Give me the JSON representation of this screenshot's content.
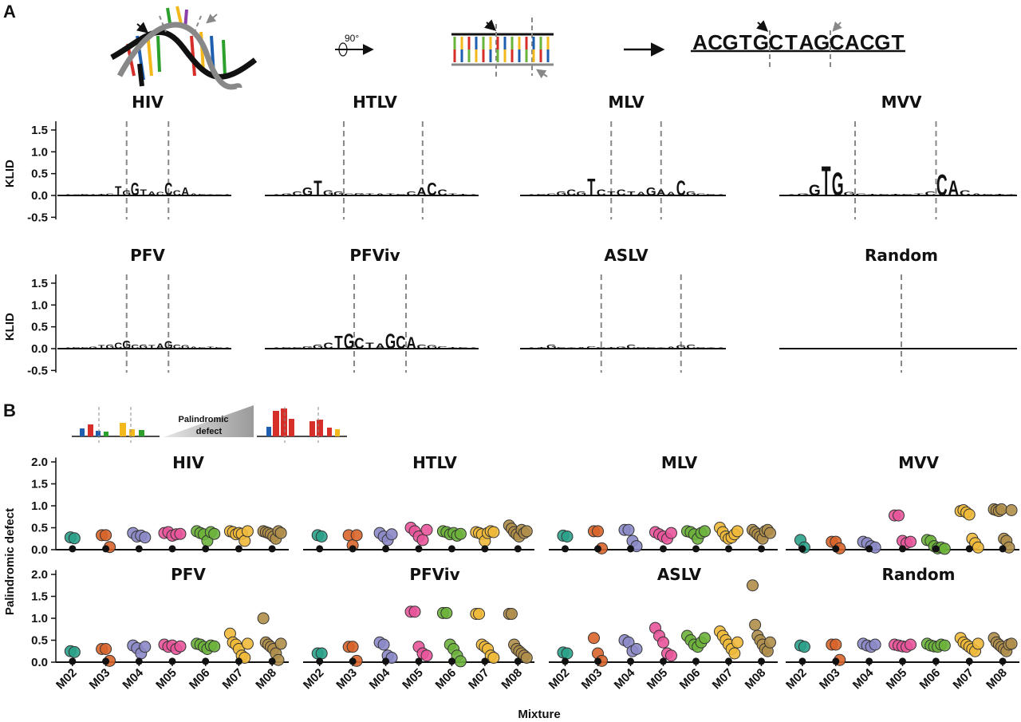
{
  "figure": {
    "panel_labels": [
      "A",
      "B"
    ],
    "diagram": {
      "rotation": "90°",
      "sequence": "ACGTGCTAGCACGT"
    },
    "defect_label": [
      "Palindromic",
      "defect"
    ]
  },
  "logo_axis": {
    "ylabel": "KLID",
    "ylim": [
      -0.55,
      1.7
    ],
    "yticks": [
      -0.5,
      {
        "value": 0,
        "label": "0.0"
      },
      0.5,
      {
        "value": 1,
        "label": "1.0"
      },
      1.5
    ]
  },
  "strip_axis": {
    "ylabel": "Palindromic defect",
    "xlabel": "Mixture",
    "categories": [
      "M02",
      "M03",
      "M04",
      "M05",
      "M06",
      "M07",
      "M08"
    ],
    "colors": [
      "#2aa18a",
      "#d9642a",
      "#8b88c6",
      "#e8559a",
      "#6bb33b",
      "#f0b93a",
      "#b08e4a"
    ],
    "ylim": [
      0,
      2.1
    ],
    "yticks": [
      {
        "value": 0,
        "label": "0.0"
      },
      0.5,
      {
        "value": 1,
        "label": "1.0"
      },
      1.5,
      {
        "value": 2,
        "label": "2.0"
      }
    ]
  },
  "chart_data": [
    {
      "type": "logo",
      "title": "HIV",
      "xlim": [
        0,
        20
      ],
      "cut_sites": [
        7.5,
        12.5
      ],
      "letters": [
        "A",
        "C",
        "G",
        "A",
        "T",
        "C",
        "T",
        "G",
        "G",
        "T",
        "A",
        "C",
        "C",
        "C",
        "A",
        "A",
        "C",
        "T",
        "G",
        "A"
      ],
      "heights": [
        0.02,
        0.02,
        0.03,
        0.02,
        0.03,
        0.05,
        0.22,
        0.12,
        0.3,
        0.15,
        0.1,
        0.08,
        0.3,
        0.12,
        0.2,
        0.05,
        0.03,
        0.02,
        0.02,
        0.02
      ]
    },
    {
      "type": "logo",
      "title": "HTLV",
      "xlim": [
        0,
        20
      ],
      "cut_sites": [
        7,
        14.6
      ],
      "letters": [
        "A",
        "G",
        "C",
        "G",
        "T",
        "G",
        "G",
        "C",
        "G",
        "T",
        "A",
        "T",
        "C",
        "C",
        "A",
        "C",
        "C",
        "T",
        "T",
        "A"
      ],
      "heights": [
        0.02,
        0.05,
        0.1,
        0.2,
        0.35,
        0.12,
        0.1,
        0.05,
        0.06,
        0.05,
        0.05,
        0.05,
        0.04,
        0.1,
        0.2,
        0.3,
        0.15,
        0.05,
        0.04,
        0.02
      ]
    },
    {
      "type": "logo",
      "title": "MLV",
      "xlim": [
        0,
        20
      ],
      "cut_sites": [
        8.5,
        13.5
      ],
      "letters": [
        "A",
        "G",
        "C",
        "G",
        "C",
        "G",
        "T",
        "C",
        "T",
        "C",
        "T",
        "A",
        "G",
        "A",
        "A",
        "C",
        "G",
        "C",
        "G",
        "A"
      ],
      "heights": [
        0.02,
        0.04,
        0.05,
        0.1,
        0.15,
        0.1,
        0.4,
        0.15,
        0.1,
        0.15,
        0.1,
        0.08,
        0.2,
        0.15,
        0.08,
        0.35,
        0.1,
        0.05,
        0.04,
        0.02
      ]
    },
    {
      "type": "logo",
      "title": "MVV",
      "xlim": [
        0,
        20
      ],
      "cut_sites": [
        6,
        13
      ],
      "letters": [
        "A",
        "G",
        "G",
        "T",
        "G",
        "G",
        "C",
        "T",
        "C",
        "T",
        "C",
        "T",
        "C",
        "C",
        "A",
        "C",
        "A",
        "G",
        "T",
        "T"
      ],
      "heights": [
        0.02,
        0.05,
        0.25,
        0.7,
        0.55,
        0.08,
        0.05,
        0.04,
        0.03,
        0.03,
        0.03,
        0.05,
        0.1,
        0.5,
        0.35,
        0.12,
        0.05,
        0.04,
        0.03,
        0.02
      ]
    },
    {
      "type": "logo",
      "title": "PFV",
      "xlim": [
        0,
        20
      ],
      "cut_sites": [
        7.5,
        12.5
      ],
      "letters": [
        "A",
        "G",
        "C",
        "G",
        "T",
        "G",
        "C",
        "G",
        "C",
        "G",
        "T",
        "A",
        "G",
        "C",
        "G",
        "A",
        "C",
        "T",
        "C",
        "A"
      ],
      "heights": [
        0.02,
        0.03,
        0.04,
        0.05,
        0.08,
        0.1,
        0.15,
        0.2,
        0.1,
        0.1,
        0.08,
        0.12,
        0.18,
        0.1,
        0.08,
        0.05,
        0.04,
        0.05,
        0.03,
        0.02
      ]
    },
    {
      "type": "logo",
      "title": "PFViv",
      "xlim": [
        0,
        20
      ],
      "cut_sites": [
        8,
        13
      ],
      "letters": [
        "A",
        "G",
        "C",
        "G",
        "G",
        "C",
        "T",
        "G",
        "C",
        "T",
        "A",
        "G",
        "C",
        "A",
        "C",
        "G",
        "C",
        "T",
        "C",
        "A"
      ],
      "heights": [
        0.02,
        0.03,
        0.04,
        0.06,
        0.1,
        0.15,
        0.3,
        0.35,
        0.25,
        0.15,
        0.12,
        0.35,
        0.3,
        0.28,
        0.1,
        0.08,
        0.06,
        0.04,
        0.03,
        0.02
      ]
    },
    {
      "type": "logo",
      "title": "ASLV",
      "xlim": [
        0,
        20
      ],
      "cut_sites": [
        7.5,
        15.5
      ],
      "letters": [
        "A",
        "T",
        "G",
        "C",
        "T",
        "A",
        "C",
        "G",
        "T",
        "G",
        "C",
        "G",
        "C",
        "T",
        "A",
        "G",
        "C",
        "G",
        "T",
        "A"
      ],
      "heights": [
        0.02,
        0.03,
        0.1,
        0.03,
        0.02,
        0.04,
        0.06,
        0.03,
        0.04,
        0.05,
        0.1,
        0.04,
        0.03,
        0.02,
        0.05,
        0.08,
        0.1,
        0.04,
        0.02,
        0.02
      ]
    },
    {
      "type": "logo",
      "title": "Random",
      "xlim": [
        0,
        20
      ],
      "cut_sites": [
        10
      ],
      "letters": [],
      "heights": []
    },
    {
      "type": "strip",
      "title": "HIV",
      "reference": [
        0.02,
        0.02,
        0.02,
        0.02,
        0.02,
        0.02,
        0.02
      ],
      "values": [
        [
          0.28,
          0.26
        ],
        [
          0.33,
          0.33,
          0.06
        ],
        [
          0.38,
          0.3,
          0.32,
          0.28
        ],
        [
          0.38,
          0.4,
          0.32,
          0.35,
          0.36
        ],
        [
          0.42,
          0.38,
          0.35,
          0.2,
          0.4,
          0.36
        ],
        [
          0.42,
          0.4,
          0.35,
          0.38,
          0.36,
          0.2,
          0.42
        ],
        [
          0.42,
          0.4,
          0.38,
          0.35,
          0.3,
          0.25,
          0.42,
          0.38
        ]
      ]
    },
    {
      "type": "strip",
      "title": "HTLV",
      "reference": [
        0.02,
        0.02,
        0.02,
        0.02,
        0.02,
        0.02,
        0.02
      ],
      "values": [
        [
          0.33,
          0.3
        ],
        [
          0.33,
          0.1,
          0.33
        ],
        [
          0.38,
          0.3,
          0.22,
          0.35
        ],
        [
          0.5,
          0.42,
          0.3,
          0.22,
          0.45
        ],
        [
          0.42,
          0.4,
          0.35,
          0.38,
          0.32,
          0.36
        ],
        [
          0.4,
          0.38,
          0.35,
          0.2,
          0.38,
          0.42,
          0.4
        ],
        [
          0.55,
          0.48,
          0.4,
          0.35,
          0.3,
          0.45,
          0.38,
          0.42
        ]
      ]
    },
    {
      "type": "strip",
      "title": "MLV",
      "reference": [
        0.02,
        0.02,
        0.02,
        0.02,
        0.02,
        0.02,
        0.02
      ],
      "values": [
        [
          0.32,
          0.3
        ],
        [
          0.42,
          0.42,
          0.03
        ],
        [
          0.45,
          0.45,
          0.2,
          0.08
        ],
        [
          0.4,
          0.35,
          0.3,
          0.25,
          0.38
        ],
        [
          0.42,
          0.4,
          0.35,
          0.25,
          0.38,
          0.42
        ],
        [
          0.5,
          0.4,
          0.3,
          0.25,
          0.28,
          0.35,
          0.42
        ],
        [
          0.45,
          0.4,
          0.35,
          0.3,
          0.25,
          0.42,
          0.45,
          0.38
        ]
      ]
    },
    {
      "type": "strip",
      "title": "MVV",
      "reference": [
        0.02,
        0.02,
        0.02,
        0.02,
        0.02,
        0.02,
        0.02
      ],
      "values": [
        [
          0.22,
          0.05
        ],
        [
          0.18,
          0.18,
          0.03
        ],
        [
          0.18,
          0.15,
          0.08,
          0.05
        ],
        [
          0.78,
          0.78,
          0.2,
          0.15,
          0.18
        ],
        [
          0.22,
          0.2,
          0.08,
          0.03,
          0.05,
          0.02
        ],
        [
          0.88,
          0.9,
          0.85,
          0.8,
          0.25,
          0.15,
          0.05
        ],
        [
          0.92,
          0.9,
          0.88,
          0.92,
          0.25,
          0.2,
          0.05,
          0.9
        ]
      ]
    },
    {
      "type": "strip",
      "title": "PFV",
      "reference": [
        0.02,
        0.02,
        0.02,
        0.02,
        0.02,
        0.02,
        0.02
      ],
      "values": [
        [
          0.25,
          0.23
        ],
        [
          0.3,
          0.3,
          0.03
        ],
        [
          0.38,
          0.32,
          0.2,
          0.35
        ],
        [
          0.4,
          0.35,
          0.38,
          0.3,
          0.36
        ],
        [
          0.42,
          0.4,
          0.35,
          0.3,
          0.38,
          0.36
        ],
        [
          0.65,
          0.45,
          0.4,
          0.3,
          0.15,
          0.1,
          0.42
        ],
        [
          1.0,
          0.45,
          0.4,
          0.35,
          0.3,
          0.2,
          0.05,
          0.42
        ]
      ]
    },
    {
      "type": "strip",
      "title": "PFViv",
      "reference": [
        0.02,
        0.02,
        0.02,
        0.02,
        0.02,
        0.02,
        0.02
      ],
      "values": [
        [
          0.2,
          0.2
        ],
        [
          0.35,
          0.35,
          0.03
        ],
        [
          0.45,
          0.4,
          0.15,
          0.1
        ],
        [
          1.15,
          1.15,
          0.35,
          0.2,
          0.15
        ],
        [
          1.12,
          1.12,
          0.4,
          0.3,
          0.15,
          0.02
        ],
        [
          1.1,
          1.1,
          0.4,
          0.35,
          0.3,
          0.15,
          0.1
        ],
        [
          1.1,
          1.1,
          0.4,
          0.3,
          0.25,
          0.2,
          0.15,
          0.1
        ]
      ]
    },
    {
      "type": "strip",
      "title": "ASLV",
      "reference": [
        0.02,
        0.02,
        0.02,
        0.02,
        0.02,
        0.02,
        0.02
      ],
      "values": [
        [
          0.22,
          0.2
        ],
        [
          0.55,
          0.2,
          0.03
        ],
        [
          0.5,
          0.45,
          0.25,
          0.3
        ],
        [
          0.78,
          0.6,
          0.45,
          0.2,
          0.15
        ],
        [
          0.6,
          0.5,
          0.4,
          0.35,
          0.45,
          0.55
        ],
        [
          0.7,
          0.6,
          0.5,
          0.4,
          0.3,
          0.2,
          0.45
        ],
        [
          1.75,
          0.85,
          0.6,
          0.5,
          0.4,
          0.3,
          0.25,
          0.45
        ]
      ]
    },
    {
      "type": "strip",
      "title": "Random",
      "reference": [
        0.02,
        0.02,
        0.02,
        0.02,
        0.02,
        0.02,
        0.02
      ],
      "values": [
        [
          0.38,
          0.35
        ],
        [
          0.4,
          0.4,
          0.05
        ],
        [
          0.42,
          0.38,
          0.35,
          0.4
        ],
        [
          0.4,
          0.38,
          0.36,
          0.35,
          0.4
        ],
        [
          0.42,
          0.38,
          0.36,
          0.35,
          0.4,
          0.38
        ],
        [
          0.55,
          0.45,
          0.4,
          0.35,
          0.3,
          0.25,
          0.42
        ],
        [
          0.55,
          0.45,
          0.4,
          0.35,
          0.3,
          0.25,
          0.4,
          0.42
        ]
      ]
    }
  ]
}
